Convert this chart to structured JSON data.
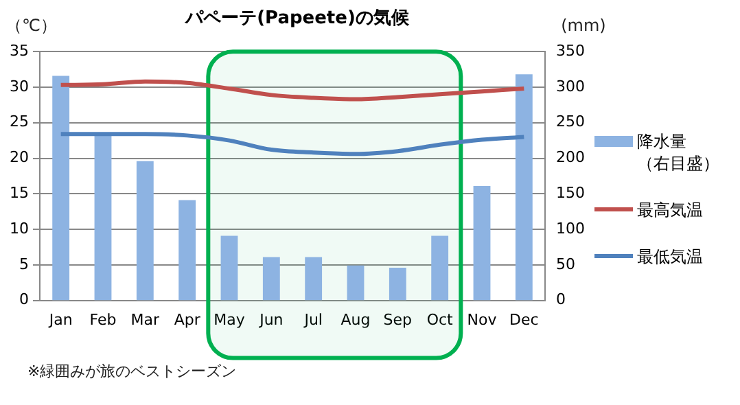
{
  "chart_data": {
    "type": "bar",
    "title": "パペーテ(Papeete)の気候",
    "ylabel": "（℃）",
    "y2label": "(mm)",
    "categories": [
      "Jan",
      "Feb",
      "Mar",
      "Apr",
      "May",
      "Jun",
      "Jul",
      "Aug",
      "Sep",
      "Oct",
      "Nov",
      "Dec"
    ],
    "series": [
      {
        "name": "降水量（右目盛）",
        "axis": "y2",
        "color": "#8db3e2",
        "values": [
          316,
          233,
          196,
          141,
          91,
          61,
          61,
          49,
          46,
          91,
          161,
          318
        ]
      },
      {
        "name": "最高気温",
        "type": "line",
        "color": "#c0504d",
        "values": [
          30.3,
          30.4,
          30.8,
          30.6,
          29.8,
          28.9,
          28.5,
          28.3,
          28.6,
          29.0,
          29.4,
          29.8
        ]
      },
      {
        "name": "最低気温",
        "type": "line",
        "color": "#4f81bd",
        "values": [
          23.4,
          23.4,
          23.4,
          23.2,
          22.5,
          21.2,
          20.8,
          20.6,
          21.0,
          21.9,
          22.6,
          23.0
        ]
      }
    ],
    "ylim": [
      0,
      35
    ],
    "yticks": [
      0,
      5,
      10,
      15,
      20,
      25,
      30,
      35
    ],
    "y2lim": [
      0,
      350
    ],
    "y2ticks": [
      0,
      50,
      100,
      150,
      200,
      250,
      300,
      350
    ],
    "grid": "y",
    "legend": "right",
    "marker": "none",
    "line_style": "solid",
    "bands": [
      {
        "axis": "x",
        "from": "May",
        "to": "Oct",
        "color": "#00b050"
      }
    ],
    "annotations": [
      "※緑囲みが旅のベストシーズン"
    ]
  }
}
